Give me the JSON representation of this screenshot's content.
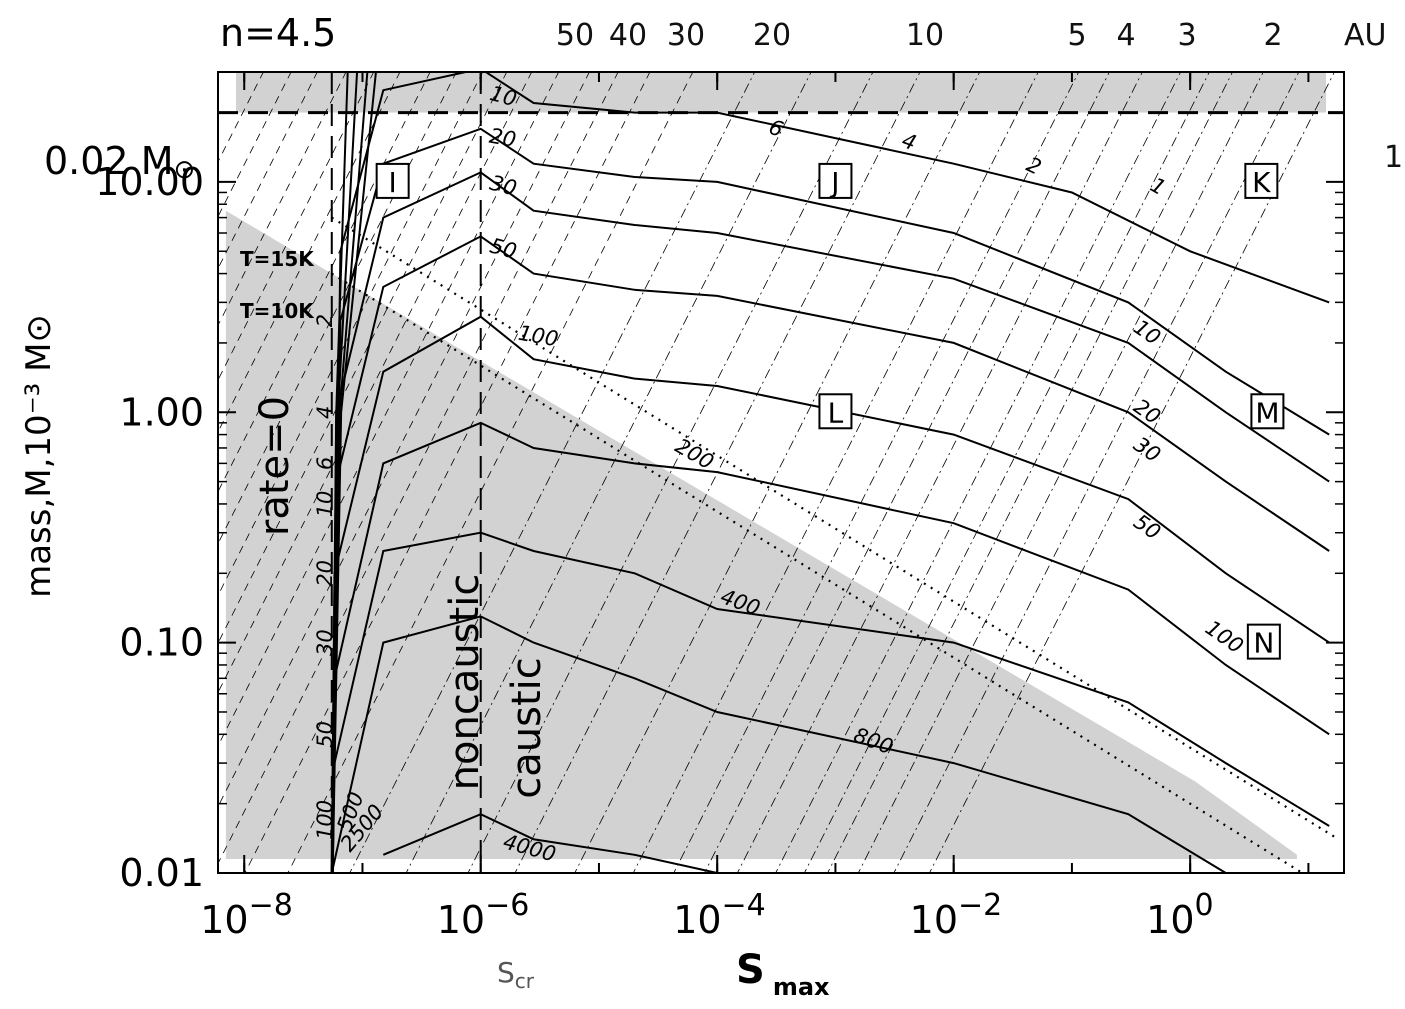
{
  "chart_data": {
    "type": "contour",
    "title": "n=4.5",
    "xlabel": "S",
    "xlabel_subscript": "max",
    "ylabel": "mass,M,10⁻³ M⊙",
    "x_scale": "log",
    "y_scale": "log",
    "xlim": [
      6e-09,
      20
    ],
    "ylim": [
      0.01,
      30
    ],
    "x_ticks": [
      {
        "value": 1e-08,
        "base": "10",
        "exp": "−8"
      },
      {
        "value": 1e-06,
        "base": "10",
        "exp": "−6"
      },
      {
        "value": 0.0001,
        "base": "10",
        "exp": "−4"
      },
      {
        "value": 0.01,
        "base": "10",
        "exp": "−2"
      },
      {
        "value": 1,
        "base": "10",
        "exp": "0"
      }
    ],
    "y_ticks": [
      {
        "value": 10,
        "label": "10.00"
      },
      {
        "value": 1,
        "label": "1.00"
      },
      {
        "value": 0.1,
        "label": "0.10"
      },
      {
        "value": 0.01,
        "label": "0.01"
      }
    ],
    "top_axis": {
      "unit": "AU",
      "ticks": [
        {
          "label": "50",
          "s": 7e-06
        },
        {
          "label": "40",
          "s": 1.3e-05
        },
        {
          "label": "30",
          "s": 3e-05
        },
        {
          "label": "20",
          "s": 0.0001
        },
        {
          "label": "10",
          "s": 0.0016
        },
        {
          "label": "5",
          "s": 0.025
        },
        {
          "label": "4",
          "s": 0.055
        },
        {
          "label": "3",
          "s": 0.19
        },
        {
          "label": "2",
          "s": 1.1
        }
      ]
    },
    "s_cr": {
      "label": "S",
      "sublabel": "cr",
      "value": 1e-06
    },
    "s_limit": 5.5e-08,
    "m_limit": {
      "value": 20,
      "label": "0.02 M",
      "sun": "⊙"
    },
    "right_edge_label": "1",
    "temperature_lines": [
      {
        "name": "T=15K",
        "points": [
          [
            5.5e-08,
            7.0
          ],
          [
            18,
            0.014
          ]
        ]
      },
      {
        "name": "T=10K",
        "points": [
          [
            5.5e-08,
            4.0
          ],
          [
            18,
            0.008
          ]
        ]
      }
    ],
    "rate_zero_label": "rate=0",
    "noncaustic_label": "noncaustic",
    "caustic_label": "caustic",
    "regions": [
      {
        "label": "I",
        "s": 1.8e-07,
        "m": 10.0
      },
      {
        "label": "J",
        "s": 0.001,
        "m": 10.0
      },
      {
        "label": "K",
        "s": 4.0,
        "m": 10.0
      },
      {
        "label": "L",
        "s": 0.001,
        "m": 1.0
      },
      {
        "label": "M",
        "s": 4.5,
        "m": 1.0
      },
      {
        "label": "N",
        "s": 4.2,
        "m": 0.1
      }
    ],
    "shading": {
      "top_band": {
        "m_from": 20,
        "m_to": 30
      },
      "low_triangle": [
        [
          7e-09,
          7.5
        ],
        [
          5.5e-08,
          4.0
        ],
        [
          1.1,
          0.025
        ],
        [
          8,
          0.012
        ],
        [
          8,
          0.0115
        ],
        [
          7e-09,
          0.0115
        ]
      ]
    },
    "contours": [
      {
        "label": "10",
        "points": [
          [
            5.5e-08,
            0.01
          ],
          [
            6.5e-08,
            5
          ],
          [
            1.5e-07,
            25
          ],
          [
            1e-06,
            31
          ],
          [
            2.8e-06,
            22
          ],
          [
            2e-05,
            20
          ],
          [
            0.0001,
            20
          ],
          [
            0.01,
            12
          ],
          [
            0.1,
            9
          ],
          [
            1.0,
            5
          ],
          [
            15,
            3
          ]
        ]
      },
      {
        "label": "20",
        "points": [
          [
            5.5e-08,
            0.01
          ],
          [
            6.5e-08,
            2.5
          ],
          [
            1.5e-07,
            12
          ],
          [
            1e-06,
            17
          ],
          [
            2.8e-06,
            12
          ],
          [
            2e-05,
            10.5
          ],
          [
            0.0001,
            10
          ],
          [
            0.01,
            6
          ],
          [
            0.3,
            3
          ],
          [
            2.0,
            1.5
          ],
          [
            15,
            0.8
          ]
        ]
      },
      {
        "label": "30",
        "points": [
          [
            5.5e-08,
            0.01
          ],
          [
            6e-08,
            1.0
          ],
          [
            1.5e-07,
            7.0
          ],
          [
            1e-06,
            11
          ],
          [
            2.8e-06,
            7.5
          ],
          [
            2e-05,
            6.5
          ],
          [
            0.0001,
            6
          ],
          [
            0.01,
            3.8
          ],
          [
            0.3,
            2.0
          ],
          [
            2.0,
            1.0
          ],
          [
            15,
            0.5
          ]
        ]
      },
      {
        "label": "50",
        "points": [
          [
            5.5e-08,
            0.01
          ],
          [
            6e-08,
            0.5
          ],
          [
            1.5e-07,
            3.5
          ],
          [
            1e-06,
            5.8
          ],
          [
            2.8e-06,
            4.0
          ],
          [
            2e-05,
            3.4
          ],
          [
            0.0001,
            3.2
          ],
          [
            0.01,
            2.0
          ],
          [
            0.3,
            1.0
          ],
          [
            2.0,
            0.5
          ],
          [
            15,
            0.25
          ]
        ]
      },
      {
        "label": "100",
        "points": [
          [
            5.5e-08,
            0.01
          ],
          [
            5.8e-08,
            0.2
          ],
          [
            1.5e-07,
            1.5
          ],
          [
            1e-06,
            2.6
          ],
          [
            2.8e-06,
            1.7
          ],
          [
            2e-05,
            1.4
          ],
          [
            0.0001,
            1.3
          ],
          [
            0.01,
            0.8
          ],
          [
            0.3,
            0.42
          ],
          [
            2.0,
            0.2
          ],
          [
            15,
            0.1
          ]
        ]
      },
      {
        "label": "200",
        "points": [
          [
            5.5e-08,
            0.01
          ],
          [
            5.8e-08,
            0.07
          ],
          [
            1.5e-07,
            0.6
          ],
          [
            1e-06,
            0.9
          ],
          [
            2.8e-06,
            0.7
          ],
          [
            2e-05,
            0.6
          ],
          [
            0.0001,
            0.55
          ],
          [
            0.01,
            0.33
          ],
          [
            0.3,
            0.17
          ],
          [
            2.0,
            0.08
          ],
          [
            15,
            0.04
          ]
        ]
      },
      {
        "label": "400",
        "points": [
          [
            5.5e-08,
            0.01
          ],
          [
            5.8e-08,
            0.03
          ],
          [
            1.5e-07,
            0.25
          ],
          [
            1e-06,
            0.3
          ],
          [
            2.8e-06,
            0.25
          ],
          [
            2e-05,
            0.2
          ],
          [
            0.0001,
            0.14
          ],
          [
            0.01,
            0.1
          ],
          [
            0.3,
            0.055
          ],
          [
            2.0,
            0.03
          ],
          [
            15,
            0.016
          ]
        ]
      },
      {
        "label": "800",
        "points": [
          [
            5.5e-08,
            0.01
          ],
          [
            1.5e-07,
            0.1
          ],
          [
            1e-06,
            0.13
          ],
          [
            2.8e-06,
            0.1
          ],
          [
            2e-05,
            0.07
          ],
          [
            0.0001,
            0.05
          ],
          [
            0.01,
            0.03
          ],
          [
            0.3,
            0.018
          ],
          [
            2.0,
            0.01
          ]
        ]
      },
      {
        "label": "4000",
        "points": [
          [
            1.5e-07,
            0.012
          ],
          [
            1e-06,
            0.018
          ],
          [
            2.8e-06,
            0.014
          ],
          [
            2e-05,
            0.012
          ],
          [
            0.0001,
            0.01
          ]
        ]
      }
    ],
    "contour_labels_drawn": [
      {
        "text": "10",
        "s": 1.5e-06,
        "m": 22,
        "rot": 15
      },
      {
        "text": "6",
        "s": 0.0003,
        "m": 16,
        "rot": 20
      },
      {
        "text": "4",
        "s": 0.004,
        "m": 14,
        "rot": 20
      },
      {
        "text": "2",
        "s": 0.045,
        "m": 11,
        "rot": 25
      },
      {
        "text": "1",
        "s": 0.5,
        "m": 9,
        "rot": 30
      },
      {
        "text": "20",
        "s": 1.5e-06,
        "m": 14.5,
        "rot": 10
      },
      {
        "text": "30",
        "s": 1.5e-06,
        "m": 9.0,
        "rot": 15
      },
      {
        "text": "50",
        "s": 1.5e-06,
        "m": 4.8,
        "rot": 15
      },
      {
        "text": "100",
        "s": 3e-06,
        "m": 2.0,
        "rot": 10
      },
      {
        "text": "200",
        "s": 6e-05,
        "m": 0.62,
        "rot": 30
      },
      {
        "text": "400",
        "s": 0.00015,
        "m": 0.14,
        "rot": 20
      },
      {
        "text": "800",
        "s": 0.002,
        "m": 0.035,
        "rot": 20
      },
      {
        "text": "4000",
        "s": 2.5e-06,
        "m": 0.012,
        "rot": 15
      },
      {
        "text": "10",
        "s": 0.4,
        "m": 2.1,
        "rot": 35
      },
      {
        "text": "20",
        "s": 0.4,
        "m": 0.95,
        "rot": 35
      },
      {
        "text": "30",
        "s": 0.4,
        "m": 0.65,
        "rot": 35
      },
      {
        "text": "50",
        "s": 0.4,
        "m": 0.3,
        "rot": 35
      },
      {
        "text": "100",
        "s": 1.8,
        "m": 0.1,
        "rot": 35
      },
      {
        "text": "2",
        "s": 5.5e-08,
        "m": 2.5,
        "rot": -90
      },
      {
        "text": "4",
        "s": 5.5e-08,
        "m": 1.0,
        "rot": -90
      },
      {
        "text": "6",
        "s": 5.5e-08,
        "m": 0.6,
        "rot": -90
      },
      {
        "text": "10",
        "s": 5.5e-08,
        "m": 0.4,
        "rot": -90
      },
      {
        "text": "20",
        "s": 5.5e-08,
        "m": 0.2,
        "rot": -90
      },
      {
        "text": "30",
        "s": 5.5e-08,
        "m": 0.1,
        "rot": -90
      },
      {
        "text": "50",
        "s": 5.5e-08,
        "m": 0.04,
        "rot": -90
      },
      {
        "text": "100",
        "s": 5.5e-08,
        "m": 0.017,
        "rot": -90
      },
      {
        "text": "500",
        "s": 9e-08,
        "m": 0.018,
        "rot": -70
      },
      {
        "text": "2500",
        "s": 1.1e-07,
        "m": 0.015,
        "rot": -50
      }
    ]
  }
}
